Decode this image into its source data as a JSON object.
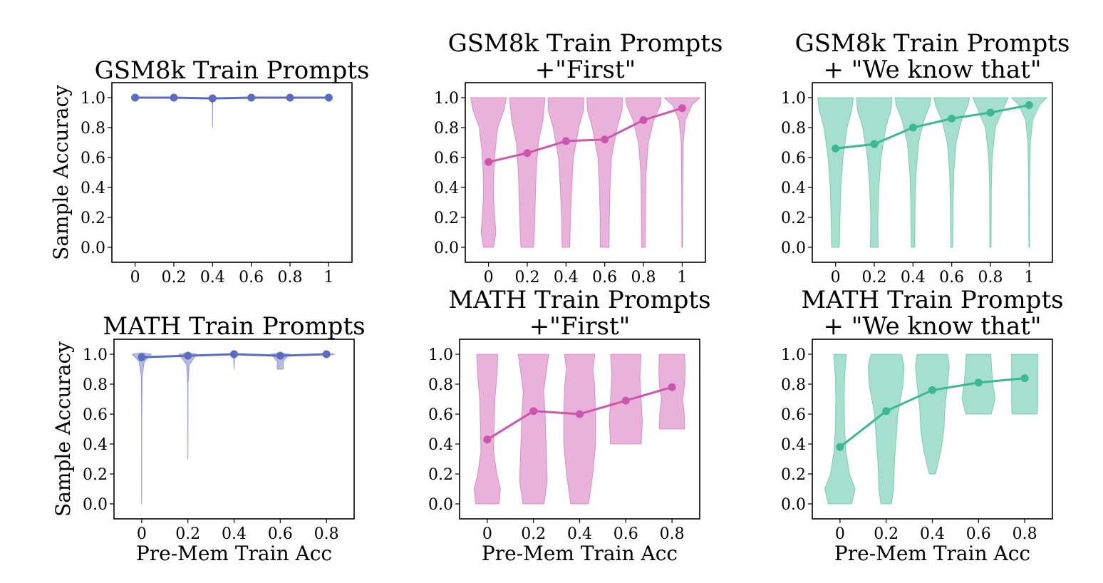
{
  "chart_data": [
    {
      "type": "violin",
      "title": [
        "GSM8k Train Prompts"
      ],
      "xlabel": "",
      "ylabel": "Sample Accuracy",
      "color": "#5b6bbf",
      "x": [
        "0",
        "0.2",
        "0.4",
        "0.6",
        "0.8",
        "1"
      ],
      "mean": [
        1.0,
        1.0,
        0.995,
        1.0,
        1.0,
        1.0
      ],
      "dist_min": [
        1.0,
        1.0,
        0.8,
        1.0,
        1.0,
        1.0
      ],
      "yticks": [
        "0.0",
        "0.2",
        "0.4",
        "0.6",
        "0.8",
        "1.0"
      ],
      "ylim": [
        -0.1,
        1.1
      ]
    },
    {
      "type": "violin",
      "title": [
        "GSM8k Train Prompts",
        "+\"First\""
      ],
      "xlabel": "",
      "ylabel": "",
      "color": "#cc55b0",
      "x": [
        "0",
        "0.2",
        "0.4",
        "0.6",
        "0.8",
        "1"
      ],
      "mean": [
        0.57,
        0.63,
        0.71,
        0.72,
        0.85,
        0.93
      ],
      "dist_min": [
        0.0,
        0.0,
        0.0,
        0.0,
        0.0,
        0.0
      ],
      "yticks": [
        "0.0",
        "0.2",
        "0.4",
        "0.6",
        "0.8",
        "1.0"
      ],
      "ylim": [
        -0.1,
        1.1
      ]
    },
    {
      "type": "violin",
      "title": [
        "GSM8k Train Prompts",
        "+ \"We know that\""
      ],
      "xlabel": "",
      "ylabel": "",
      "color": "#3bb894",
      "x": [
        "0",
        "0.2",
        "0.4",
        "0.6",
        "0.8",
        "1"
      ],
      "mean": [
        0.66,
        0.69,
        0.8,
        0.86,
        0.9,
        0.95
      ],
      "dist_min": [
        0.0,
        0.0,
        0.0,
        0.0,
        0.0,
        0.0
      ],
      "yticks": [
        "0.0",
        "0.2",
        "0.4",
        "0.6",
        "0.8",
        "1.0"
      ],
      "ylim": [
        -0.1,
        1.1
      ]
    },
    {
      "type": "violin",
      "title": [
        "MATH Train Prompts"
      ],
      "xlabel": "Pre-Mem Train Acc",
      "ylabel": "Sample Accuracy",
      "color": "#5b6bbf",
      "x": [
        "0",
        "0.2",
        "0.4",
        "0.6",
        "0.8"
      ],
      "mean": [
        0.98,
        0.99,
        1.0,
        0.99,
        1.0
      ],
      "dist_min": [
        0.0,
        0.3,
        0.9,
        0.9,
        1.0
      ],
      "yticks": [
        "0.0",
        "0.2",
        "0.4",
        "0.6",
        "0.8",
        "1.0"
      ],
      "ylim": [
        -0.1,
        1.1
      ]
    },
    {
      "type": "violin",
      "title": [
        "MATH Train Prompts",
        "+\"First\""
      ],
      "xlabel": "Pre-Mem Train Acc",
      "ylabel": "",
      "color": "#cc55b0",
      "x": [
        "0",
        "0.2",
        "0.4",
        "0.6",
        "0.8"
      ],
      "mean": [
        0.43,
        0.62,
        0.6,
        0.69,
        0.78
      ],
      "dist_min": [
        0.0,
        0.0,
        0.0,
        0.4,
        0.5
      ],
      "yticks": [
        "0.0",
        "0.2",
        "0.4",
        "0.6",
        "0.8",
        "1.0"
      ],
      "ylim": [
        -0.1,
        1.1
      ]
    },
    {
      "type": "violin",
      "title": [
        "MATH Train Prompts",
        "+ \"We know that\""
      ],
      "xlabel": "Pre-Mem Train Acc",
      "ylabel": "",
      "color": "#3bb894",
      "x": [
        "0",
        "0.2",
        "0.4",
        "0.6",
        "0.8"
      ],
      "mean": [
        0.38,
        0.62,
        0.76,
        0.81,
        0.84
      ],
      "dist_min": [
        0.0,
        0.0,
        0.2,
        0.6,
        0.6
      ],
      "yticks": [
        "0.0",
        "0.2",
        "0.4",
        "0.6",
        "0.8",
        "1.0"
      ],
      "ylim": [
        -0.1,
        1.1
      ]
    }
  ]
}
